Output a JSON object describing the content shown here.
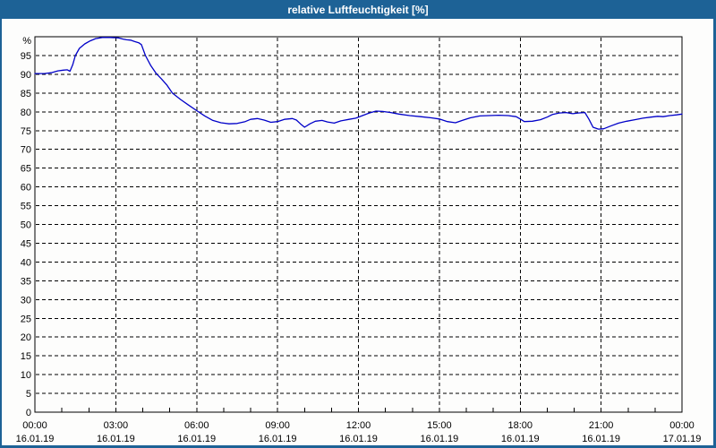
{
  "window": {
    "title": "relative Luftfeuchtigkeit [%]",
    "colors": {
      "titlebar": "#1d6296",
      "frame": "#1d6296",
      "plot_background": "#fdfdfc",
      "grid": "#000000",
      "axis_text": "#000000",
      "title_text": "#ffffff"
    }
  },
  "chart_data": {
    "type": "line",
    "title": "relative Luftfeuchtigkeit [%]",
    "xlabel": "",
    "ylabel": "%",
    "y_axis": {
      "range": [
        0,
        100
      ],
      "tick_step": 5,
      "unit": "%",
      "labels": [
        "0",
        "5",
        "10",
        "15",
        "20",
        "25",
        "30",
        "35",
        "40",
        "45",
        "50",
        "55",
        "60",
        "65",
        "70",
        "75",
        "80",
        "85",
        "90",
        "95"
      ]
    },
    "x_axis": {
      "range_hours": [
        0,
        24
      ],
      "major_tick_hours": 3,
      "minor_tick_hours": 1,
      "tick_labels": [
        {
          "time": "00:00",
          "date": "16.01.19"
        },
        {
          "time": "03:00",
          "date": "16.01.19"
        },
        {
          "time": "06:00",
          "date": "16.01.19"
        },
        {
          "time": "09:00",
          "date": "16.01.19"
        },
        {
          "time": "12:00",
          "date": "16.01.19"
        },
        {
          "time": "15:00",
          "date": "16.01.19"
        },
        {
          "time": "18:00",
          "date": "16.01.19"
        },
        {
          "time": "21:00",
          "date": "16.01.19"
        },
        {
          "time": "00:00",
          "date": "17.01.19"
        }
      ]
    },
    "grid": {
      "style": "dashed",
      "horizontal_step": 5,
      "vertical_step_hours": 3
    },
    "legend": "none",
    "series": [
      {
        "name": "relative Luftfeuchtigkeit",
        "color": "#0000c8",
        "points": [
          [
            0,
            90.2
          ],
          [
            0.35,
            90.2
          ],
          [
            0.6,
            90.4
          ],
          [
            0.85,
            90.9
          ],
          [
            1.05,
            91.1
          ],
          [
            1.2,
            91.2
          ],
          [
            1.3,
            90.8
          ],
          [
            1.4,
            92.5
          ],
          [
            1.5,
            95.0
          ],
          [
            1.65,
            96.9
          ],
          [
            1.85,
            98.1
          ],
          [
            2.05,
            98.9
          ],
          [
            2.25,
            99.5
          ],
          [
            2.5,
            99.8
          ],
          [
            2.8,
            99.8
          ],
          [
            3.1,
            99.7
          ],
          [
            3.25,
            99.4
          ],
          [
            3.4,
            99.2
          ],
          [
            3.55,
            99.1
          ],
          [
            3.7,
            98.7
          ],
          [
            3.85,
            98.4
          ],
          [
            3.95,
            97.9
          ],
          [
            4.1,
            95.0
          ],
          [
            4.3,
            92.3
          ],
          [
            4.5,
            90.2
          ],
          [
            4.7,
            88.7
          ],
          [
            4.9,
            87.1
          ],
          [
            5.1,
            85.0
          ],
          [
            5.4,
            83.3
          ],
          [
            5.7,
            81.8
          ],
          [
            6.0,
            80.3
          ],
          [
            6.3,
            78.9
          ],
          [
            6.6,
            77.7
          ],
          [
            6.9,
            77.1
          ],
          [
            7.2,
            76.8
          ],
          [
            7.5,
            76.9
          ],
          [
            7.8,
            77.4
          ],
          [
            8.0,
            78.0
          ],
          [
            8.25,
            78.2
          ],
          [
            8.5,
            77.8
          ],
          [
            8.75,
            77.2
          ],
          [
            9.0,
            77.4
          ],
          [
            9.25,
            78.0
          ],
          [
            9.55,
            78.2
          ],
          [
            9.7,
            77.8
          ],
          [
            9.85,
            76.8
          ],
          [
            10.0,
            75.9
          ],
          [
            10.2,
            76.8
          ],
          [
            10.4,
            77.5
          ],
          [
            10.65,
            77.7
          ],
          [
            10.85,
            77.3
          ],
          [
            11.1,
            77.0
          ],
          [
            11.35,
            77.6
          ],
          [
            11.65,
            78.0
          ],
          [
            11.9,
            78.3
          ],
          [
            12.15,
            79.0
          ],
          [
            12.4,
            79.7
          ],
          [
            12.65,
            80.2
          ],
          [
            12.9,
            80.1
          ],
          [
            13.2,
            79.8
          ],
          [
            13.5,
            79.4
          ],
          [
            13.9,
            79.0
          ],
          [
            14.3,
            78.7
          ],
          [
            14.7,
            78.4
          ],
          [
            15.0,
            78.1
          ],
          [
            15.3,
            77.4
          ],
          [
            15.6,
            77.1
          ],
          [
            15.85,
            77.7
          ],
          [
            16.15,
            78.4
          ],
          [
            16.5,
            78.9
          ],
          [
            16.85,
            79.0
          ],
          [
            17.2,
            79.1
          ],
          [
            17.55,
            79.0
          ],
          [
            17.85,
            78.7
          ],
          [
            18.0,
            78.1
          ],
          [
            18.15,
            77.4
          ],
          [
            18.45,
            77.5
          ],
          [
            18.75,
            77.9
          ],
          [
            19.0,
            78.6
          ],
          [
            19.2,
            79.3
          ],
          [
            19.45,
            79.7
          ],
          [
            19.7,
            79.8
          ],
          [
            19.95,
            79.5
          ],
          [
            20.15,
            79.7
          ],
          [
            20.4,
            79.8
          ],
          [
            20.55,
            78.0
          ],
          [
            20.7,
            75.9
          ],
          [
            20.9,
            75.4
          ],
          [
            21.1,
            75.5
          ],
          [
            21.35,
            76.2
          ],
          [
            21.65,
            77.0
          ],
          [
            21.95,
            77.5
          ],
          [
            22.25,
            77.9
          ],
          [
            22.55,
            78.3
          ],
          [
            22.85,
            78.6
          ],
          [
            23.1,
            78.8
          ],
          [
            23.3,
            78.7
          ],
          [
            23.55,
            79.0
          ],
          [
            23.8,
            79.2
          ],
          [
            24,
            79.4
          ]
        ]
      }
    ]
  }
}
